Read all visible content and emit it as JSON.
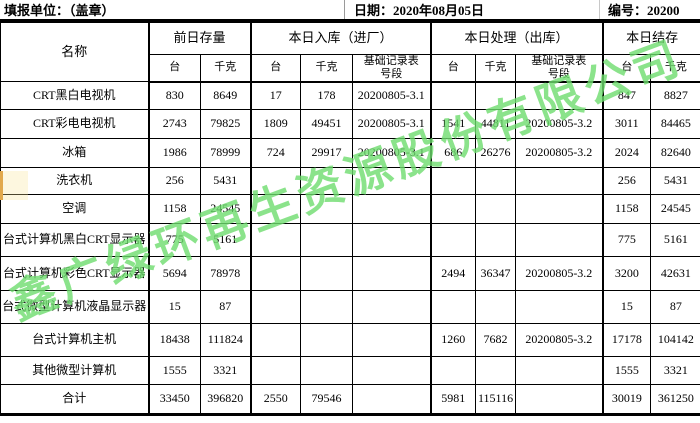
{
  "topbar": {
    "unit_label": "填报单位：（盖章）",
    "date_label": "日期：2020年08月05日",
    "serial_label": "编号：20200"
  },
  "table": {
    "header": {
      "name": "名称",
      "groups": [
        {
          "label": "前日存量",
          "cols": [
            "台",
            "千克"
          ]
        },
        {
          "label": "本日入库（进厂）",
          "cols": [
            "台",
            "千克",
            "基础记录表\n号段"
          ]
        },
        {
          "label": "本日处理（出库）",
          "cols": [
            "台",
            "千克",
            "基础记录表\n号段"
          ]
        },
        {
          "label": "本日结存",
          "cols": [
            "台",
            "千克"
          ]
        }
      ]
    },
    "rows": [
      {
        "name": "CRT黑白电视机",
        "values": [
          "830",
          "8649",
          "17",
          "178",
          "20200805-3.1",
          "",
          "",
          "",
          "847",
          "8827"
        ]
      },
      {
        "name": "CRT彩电电视机",
        "values": [
          "2743",
          "79825",
          "1809",
          "49451",
          "20200805-3.1",
          "1541",
          "44811",
          "20200805-3.2",
          "3011",
          "84465"
        ]
      },
      {
        "name": "冰箱",
        "values": [
          "1986",
          "78999",
          "724",
          "29917",
          "20200805-3.1",
          "686",
          "26276",
          "20200805-3.2",
          "2024",
          "82640"
        ]
      },
      {
        "name": "洗衣机",
        "values": [
          "256",
          "5431",
          "",
          "",
          "",
          "",
          "",
          "",
          "256",
          "5431"
        ]
      },
      {
        "name": "空调",
        "values": [
          "1158",
          "24545",
          "",
          "",
          "",
          "",
          "",
          "",
          "1158",
          "24545"
        ]
      },
      {
        "name": "台式计算机黑白CRT显示器",
        "values": [
          "775",
          "5161",
          "",
          "",
          "",
          "",
          "",
          "",
          "775",
          "5161"
        ]
      },
      {
        "name": "台式计算机彩色CRT显示器",
        "values": [
          "5694",
          "78978",
          "",
          "",
          "",
          "2494",
          "36347",
          "20200805-3.2",
          "3200",
          "42631"
        ]
      },
      {
        "name": "台式微型计算机液晶显示器",
        "values": [
          "15",
          "87",
          "",
          "",
          "",
          "",
          "",
          "",
          "15",
          "87"
        ]
      },
      {
        "name": "台式计算机主机",
        "values": [
          "18438",
          "111824",
          "",
          "",
          "",
          "1260",
          "7682",
          "20200805-3.2",
          "17178",
          "104142"
        ]
      },
      {
        "name": "其他微型计算机",
        "values": [
          "1555",
          "3321",
          "",
          "",
          "",
          "",
          "",
          "",
          "1555",
          "3321"
        ]
      },
      {
        "name": "合计",
        "values": [
          "33450",
          "396820",
          "2550",
          "79546",
          "",
          "5981",
          "115116",
          "",
          "30019",
          "361250"
        ]
      }
    ]
  },
  "watermark": {
    "text": "鑫广绿环再生资源股份有限公司",
    "color": "#6fdd6f"
  },
  "colors": {
    "border": "#000000",
    "background": "#ffffff",
    "artifact_yellow": "#e2a94d"
  }
}
